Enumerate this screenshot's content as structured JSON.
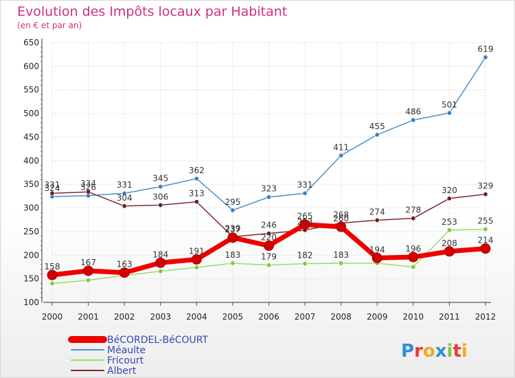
{
  "chart_data": {
    "type": "line",
    "title": "Evolution des Impôts locaux par Habitant",
    "subtitle": "(en € et par an)",
    "categories": [
      "2000",
      "2001",
      "2002",
      "2003",
      "2004",
      "2005",
      "2006",
      "2007",
      "2008",
      "2009",
      "2010",
      "2011",
      "2012"
    ],
    "ylim": [
      100,
      650
    ],
    "yticks": [
      100,
      150,
      200,
      250,
      300,
      350,
      400,
      450,
      500,
      550,
      600,
      650
    ],
    "grid": true,
    "legend_position": "bottom-left",
    "series": [
      {
        "name": "Méaulte",
        "color": "#4a8fc9",
        "marker": "#3a7fc0",
        "width": 1.5,
        "values": [
          324,
          326,
          331,
          345,
          362,
          295,
          323,
          331,
          411,
          455,
          486,
          501,
          619
        ],
        "labels": [
          "324",
          "326",
          "331",
          "345",
          "362",
          "295",
          "323",
          "331",
          "411",
          "455",
          "486",
          "501",
          "619"
        ],
        "label_side": "above"
      },
      {
        "name": "Fricourt",
        "color": "#99dd66",
        "marker": "#7ac943",
        "width": 1.5,
        "values": [
          140,
          147,
          157,
          166,
          174,
          183,
          179,
          182,
          183,
          183,
          175,
          253,
          255
        ],
        "labels": [
          "",
          "",
          "",
          "",
          "",
          "183",
          "179",
          "182",
          "183",
          "",
          "",
          "253",
          "255"
        ],
        "label_side": "above"
      },
      {
        "name": "Albert",
        "color": "#7a2a2a",
        "marker": "#6a1e1e",
        "width": 1.5,
        "values": [
          331,
          334,
          304,
          306,
          313,
          239,
          246,
          253,
          268,
          274,
          278,
          320,
          329
        ],
        "labels": [
          "331",
          "334",
          "304",
          "306",
          "313",
          "239",
          "246",
          "253",
          "268",
          "274",
          "278",
          "320",
          "329"
        ],
        "label_side": "above"
      },
      {
        "name": "BéCORDEL-BéCOURT",
        "color": "#ee0000",
        "marker": "#d40000",
        "width": 7,
        "values": [
          158,
          167,
          163,
          184,
          191,
          237,
          220,
          265,
          260,
          194,
          196,
          208,
          214
        ],
        "labels": [
          "158",
          "167",
          "163",
          "184",
          "191",
          "237",
          "220",
          "265",
          "260",
          "194",
          "196",
          "208",
          "214"
        ],
        "label_side": "above"
      }
    ],
    "legend_order": [
      "BéCORDEL-BéCOURT",
      "Méaulte",
      "Fricourt",
      "Albert"
    ]
  },
  "logo": {
    "text": "Proxiti",
    "letters": [
      "P",
      "r",
      "o",
      "x",
      "i",
      "t",
      "i"
    ],
    "colors": [
      "#2e8fd6",
      "#e63d2e",
      "#f5a623",
      "#2e8fd6",
      "#7ac943",
      "#e63d2e",
      "#f5a623"
    ]
  }
}
